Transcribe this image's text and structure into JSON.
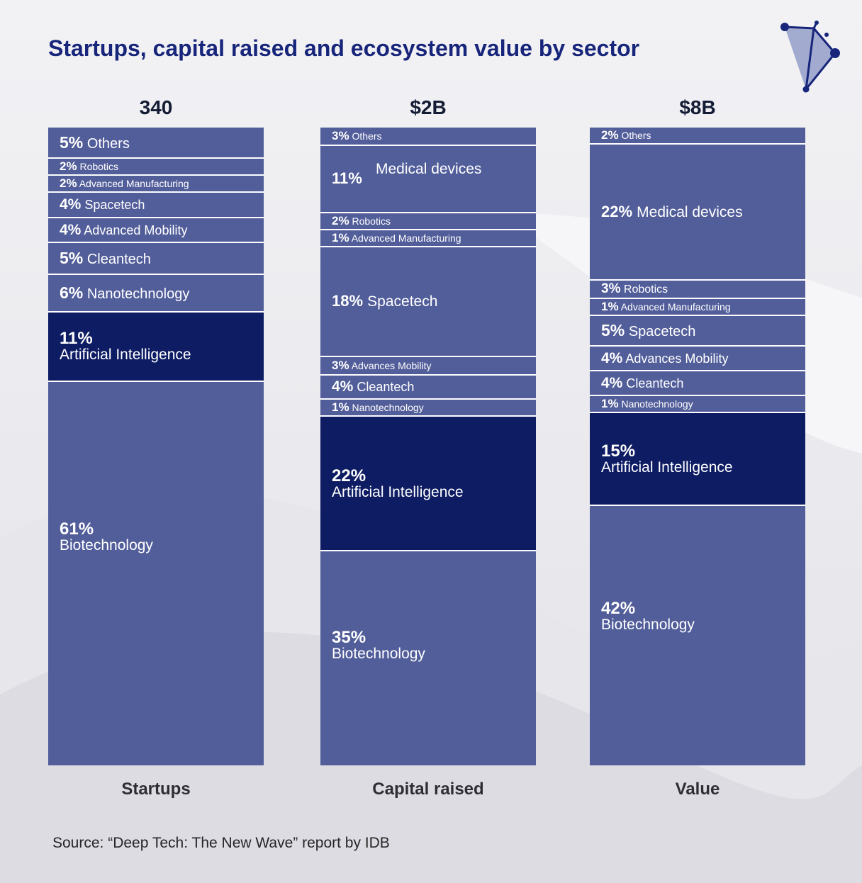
{
  "title": "Startups, capital raised and ecosystem value by sector",
  "source": "Source: “Deep Tech: The New Wave” report by IDB",
  "colors": {
    "segment": "#525e9a",
    "highlight": "#0d1c63",
    "divider": "#ffffff",
    "title": "#17257a",
    "text": "#141c35"
  },
  "chart_data": {
    "type": "bar",
    "subtype": "100% stacked",
    "title": "Startups, capital raised and ecosystem value by sector",
    "columns": [
      {
        "category": "Startups",
        "total": "340",
        "segments": [
          {
            "pct": "5%",
            "name": "Others",
            "value": 5
          },
          {
            "pct": "2%",
            "name": "Robotics",
            "value": 2
          },
          {
            "pct": "2%",
            "name": "Advanced Manufacturing",
            "value": 2
          },
          {
            "pct": "4%",
            "name": "Spacetech",
            "value": 4
          },
          {
            "pct": "4%",
            "name": "Advanced Mobility",
            "value": 4
          },
          {
            "pct": "5%",
            "name": "Cleantech",
            "value": 5
          },
          {
            "pct": "6%",
            "name": "Nanotechnology",
            "value": 6
          },
          {
            "pct": "11%",
            "name": "Artificial Intelligence",
            "value": 11,
            "highlight": true
          },
          {
            "pct": "61%",
            "name": "Biotechnology",
            "value": 61
          }
        ]
      },
      {
        "category": "Capital raised",
        "total": "$2B",
        "segments": [
          {
            "pct": "3%",
            "name": "Others",
            "value": 3
          },
          {
            "pct": "11%",
            "name": "Medical devices",
            "value": 11
          },
          {
            "pct": "2%",
            "name": "Robotics",
            "value": 2
          },
          {
            "pct": "1%",
            "name": "Advanced Manufacturing",
            "value": 1
          },
          {
            "pct": "18%",
            "name": "Spacetech",
            "value": 18
          },
          {
            "pct": "3%",
            "name": "Advances Mobility",
            "value": 3
          },
          {
            "pct": "4%",
            "name": "Cleantech",
            "value": 4
          },
          {
            "pct": "1%",
            "name": "Nanotechnology",
            "value": 1
          },
          {
            "pct": "22%",
            "name": "Artificial Intelligence",
            "value": 22,
            "highlight": true
          },
          {
            "pct": "35%",
            "name": "Biotechnology",
            "value": 35
          }
        ]
      },
      {
        "category": "Value",
        "total": "$8B",
        "segments": [
          {
            "pct": "2%",
            "name": "Others",
            "value": 2
          },
          {
            "pct": "22%",
            "name": "Medical devices",
            "value": 22
          },
          {
            "pct": "3%",
            "name": "Robotics",
            "value": 3
          },
          {
            "pct": "1%",
            "name": "Advanced Manufacturing",
            "value": 1
          },
          {
            "pct": "5%",
            "name": "Spacetech",
            "value": 5
          },
          {
            "pct": "4%",
            "name": "Advances Mobility",
            "value": 4
          },
          {
            "pct": "4%",
            "name": "Cleantech",
            "value": 4
          },
          {
            "pct": "1%",
            "name": "Nanotechnology",
            "value": 1
          },
          {
            "pct": "15%",
            "name": "Artificial Intelligence",
            "value": 15,
            "highlight": true
          },
          {
            "pct": "42%",
            "name": "Biotechnology",
            "value": 42
          }
        ]
      }
    ]
  }
}
